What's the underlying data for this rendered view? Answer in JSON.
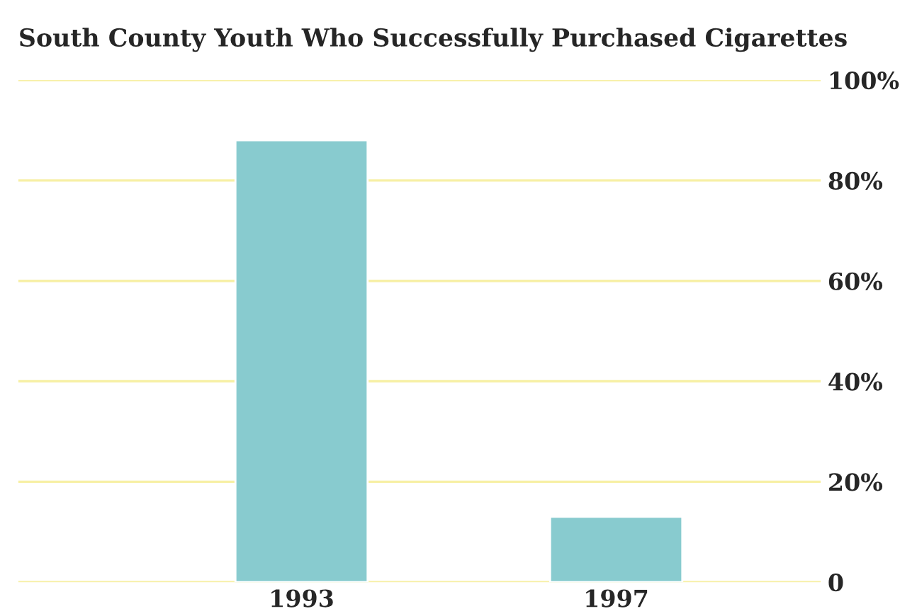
{
  "chart_data": {
    "type": "bar",
    "title": "South County Youth Who Successfully Purchased Cigarettes",
    "categories": [
      "1993",
      "1997"
    ],
    "series": [
      {
        "color": "#88cbcf",
        "values": [
          88,
          13
        ]
      }
    ],
    "ylim": [
      0,
      100
    ],
    "yticks": [
      0,
      {
        "value": 20,
        "label": "20%"
      },
      {
        "value": 40,
        "label": "40%"
      },
      {
        "value": 60,
        "label": "60%"
      },
      {
        "value": 80,
        "label": "80%"
      },
      {
        "value": 100,
        "label": "100%"
      }
    ],
    "grid": "y",
    "legend": false
  }
}
